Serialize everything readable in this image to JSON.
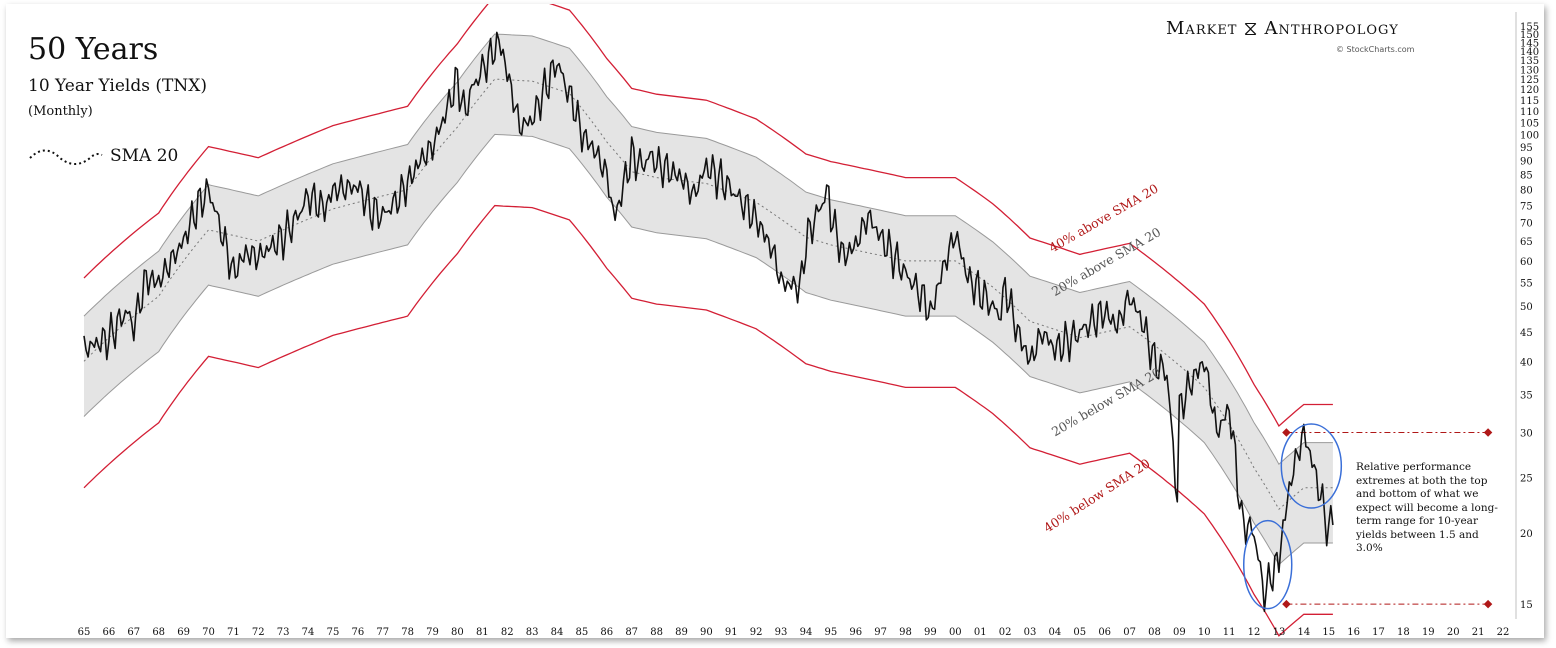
{
  "title": "50 Years",
  "subtitle": "10 Year Yields (TNX)",
  "period": "(Monthly)",
  "legend_label": "SMA 20",
  "brand_left": "Market",
  "brand_right": "Anthropology",
  "copyright": "© StockCharts.com",
  "note": "Relative performance extremes at both the top and bottom of what we expect will become a long-term range for 10-year yields between 1.5 and 3.0%",
  "colors": {
    "price": "#111111",
    "band40": "#d31f35",
    "band20": "#9a9a9a",
    "fill": "#e4e4e4",
    "circle": "#3a6fd8",
    "ref": "#b01818"
  },
  "chart_data": {
    "type": "line",
    "title": "50 Years",
    "subtitle": "10 Year Yields (TNX)",
    "xlabel": "",
    "ylabel": "",
    "y_scale": "log",
    "ylim": [
      14.3,
      160
    ],
    "x_ticks": [
      "65",
      "66",
      "67",
      "68",
      "69",
      "70",
      "71",
      "72",
      "73",
      "74",
      "75",
      "76",
      "77",
      "78",
      "79",
      "80",
      "81",
      "82",
      "83",
      "84",
      "85",
      "86",
      "87",
      "88",
      "89",
      "90",
      "91",
      "92",
      "93",
      "94",
      "95",
      "96",
      "97",
      "98",
      "99",
      "00",
      "01",
      "02",
      "03",
      "04",
      "05",
      "06",
      "07",
      "08",
      "09",
      "10",
      "11",
      "12",
      "13",
      "14",
      "15",
      "16",
      "17",
      "18",
      "19",
      "20",
      "21",
      "22"
    ],
    "y_ticks": [
      15,
      20,
      25,
      30,
      35,
      40,
      45,
      50,
      55,
      60,
      65,
      70,
      75,
      80,
      85,
      90,
      95,
      100,
      105,
      110,
      115,
      120,
      125,
      130,
      135,
      140,
      145,
      150,
      155
    ],
    "series": [
      {
        "name": "TNX",
        "x": [
          1965,
          1966,
          1966.7,
          1967,
          1967.5,
          1968,
          1968.5,
          1969,
          1969.5,
          1970,
          1970.5,
          1971,
          1971.5,
          1972,
          1973,
          1973.6,
          1974,
          1974.7,
          1975,
          1976,
          1976.5,
          1977,
          1977.5,
          1978,
          1978.5,
          1979,
          1979.5,
          1980,
          1980.3,
          1980.5,
          1981,
          1981.7,
          1982,
          1982.5,
          1983,
          1983.5,
          1984,
          1984.4,
          1984.7,
          1985,
          1985.5,
          1986,
          1986.3,
          1986.5,
          1987,
          1987.4,
          1987.8,
          1988,
          1989,
          1989.5,
          1990,
          1990.5,
          1991,
          1992,
          1992.7,
          1993,
          1993.8,
          1994,
          1994.9,
          1995,
          1995.5,
          1996,
          1996.5,
          1997,
          1998,
          1998.8,
          1999,
          1999.5,
          2000,
          2000.5,
          2001,
          2001.8,
          2002,
          2002.5,
          2003,
          2003.5,
          2004,
          2005,
          2006,
          2006.5,
          2007,
          2007.5,
          2008,
          2008.5,
          2008.9,
          2009,
          2009.5,
          2010,
          2010.5,
          2011,
          2011.5,
          2012,
          2012.4,
          2012.6,
          2013,
          2013.5,
          2013.8,
          2014,
          2014.5,
          2015,
          2015.2
        ],
        "y": [
          42,
          44,
          49,
          46,
          56,
          55,
          60,
          65,
          74,
          80,
          68,
          57,
          62,
          61,
          66,
          72,
          78,
          74,
          80,
          81,
          74,
          72,
          76,
          82,
          90,
          95,
          108,
          125,
          108,
          118,
          130,
          146,
          128,
          103,
          106,
          120,
          134,
          120,
          112,
          100,
          94,
          85,
          71,
          76,
          92,
          88,
          92,
          89,
          84,
          78,
          88,
          84,
          80,
          71,
          62,
          55,
          54,
          65,
          80,
          72,
          61,
          64,
          72,
          66,
          57,
          51,
          48,
          58,
          67,
          56,
          53,
          48,
          54,
          45,
          40,
          45,
          42,
          45,
          49,
          46,
          52,
          47,
          40,
          38,
          22,
          33,
          37,
          40,
          30,
          33,
          21,
          20,
          15.5,
          16.5,
          18,
          25,
          28,
          30,
          25,
          20,
          22
        ]
      },
      {
        "name": "SMA 20",
        "x": [
          1965,
          1968,
          1970,
          1972,
          1975,
          1978,
          1980,
          1981.5,
          1983,
          1984.5,
          1986,
          1987,
          1988,
          1990,
          1992,
          1994,
          1995,
          1996.5,
          1998,
          2000,
          2001.5,
          2003,
          2005,
          2007,
          2008.5,
          2010,
          2011,
          2012,
          2013,
          2014,
          2015
        ],
        "y": [
          40,
          52,
          68,
          65,
          74,
          80,
          103,
          125,
          124,
          118,
          97,
          86,
          84,
          82,
          76,
          66,
          64,
          62,
          60,
          60,
          54,
          47,
          44,
          46,
          41,
          36,
          31,
          26,
          22,
          24,
          24
        ]
      }
    ],
    "annotations": [
      "40% above SMA 20",
      "20% above SMA 20",
      "20% below SMA 20",
      "40% below SMA 20"
    ],
    "reference_lines": [
      30,
      15
    ]
  }
}
